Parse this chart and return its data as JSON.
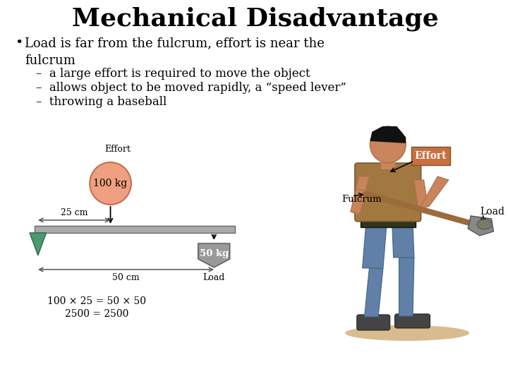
{
  "title": "Mechanical Disadvantage",
  "bullet": "Load is far from the fulcrum, effort is near the\nfulcrum",
  "sub_bullets": [
    "a large effort is required to move the object",
    "allows object to be moved rapidly, a “speed lever”",
    "throwing a baseball"
  ],
  "bg_color": "#ffffff",
  "title_color": "#000000",
  "title_fontsize": 26,
  "bullet_fontsize": 13,
  "sub_bullet_fontsize": 12,
  "effort_circle_color": "#f0a080",
  "effort_circle_label": "100 kg",
  "load_shape_color": "#999999",
  "load_label": "50 kg",
  "fulcrum_color": "#4a9a6e",
  "lever_color": "#aaaaaa",
  "dist1": "25 cm",
  "dist2": "50 cm",
  "equation1": "100 × 25 = 50 × 50",
  "equation2": "2500 = 2500",
  "effort_label": "Effort",
  "load_text": "Load",
  "fulcrum_label": "Fulcrum",
  "effort_label_right": "Effort",
  "load_label_right": "Load",
  "person_skin": "#c8845a",
  "person_hair": "#111111",
  "person_shirt": "#a07840",
  "person_pants": "#6080a8",
  "person_belt": "#333322",
  "person_shoe": "#444444",
  "shovel_handle": "#9B6B3C",
  "shovel_head": "#888888",
  "ground_color": "#c8a060",
  "effort_box_color": "#c87040",
  "effort_box_text": "#ffffff"
}
